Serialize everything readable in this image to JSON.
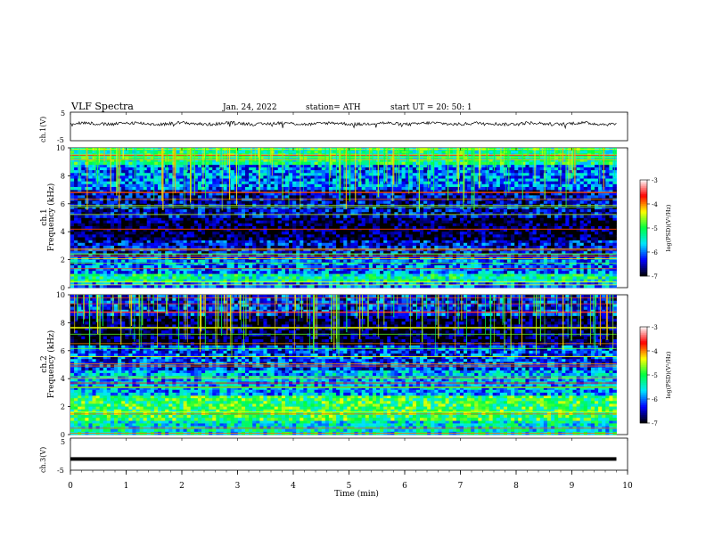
{
  "header": {
    "title": "VLF  Spectra",
    "date": "Jan. 24, 2022",
    "station": "station= ATH",
    "start": "start  UT  =    20: 50: 1"
  },
  "x_axis": {
    "label": "Time  (min)",
    "range": [
      0,
      10
    ],
    "ticks": [
      "0",
      "1",
      "2",
      "3",
      "4",
      "5",
      "6",
      "7",
      "8",
      "9",
      "10"
    ]
  },
  "colorbar": {
    "label": "log(PSD)(V²/Hz)",
    "ticks": [
      "-3",
      "-4",
      "-5",
      "-6",
      "-7"
    ],
    "range": [
      -7,
      -3
    ],
    "colormap": [
      "#000000",
      "#0000ff",
      "#00e5ff",
      "#00ff40",
      "#ffff00",
      "#ff0000",
      "#ffffff"
    ]
  },
  "chart_data": [
    {
      "type": "line",
      "id": "ch1-waveform",
      "ylabel": "ch.1(V)",
      "ylim": [
        -5,
        5
      ],
      "yticks": [
        "5",
        "-5"
      ],
      "xlim": [
        0,
        9.8
      ],
      "description_series": "waveform oscillating near +1 V",
      "series": [
        {
          "x": [
            0,
            9.8
          ],
          "y": [
            1,
            1
          ]
        }
      ]
    },
    {
      "type": "heatmap",
      "id": "ch1-spectrogram",
      "ylabel": "ch.1\nFrequency  (kHz)",
      "ylim": [
        0,
        10
      ],
      "yticks": [
        "0",
        "2",
        "4",
        "6",
        "8",
        "10"
      ],
      "xlim": [
        0,
        9.8
      ],
      "bands_khz": [
        {
          "f": [
            0,
            0.4
          ],
          "level": -6.0
        },
        {
          "f": [
            0.4,
            1.0
          ],
          "level": -5.3
        },
        {
          "f": [
            1.0,
            2.2
          ],
          "level": -6.0
        },
        {
          "f": [
            2.2,
            3.4
          ],
          "level": -6.4
        },
        {
          "f": [
            3.4,
            5.0
          ],
          "level": -6.9
        },
        {
          "f": [
            5.0,
            7.0
          ],
          "level": -6.5
        },
        {
          "f": [
            7.0,
            8.8
          ],
          "level": -6.0
        },
        {
          "f": [
            8.8,
            10.0
          ],
          "level": -5.2
        }
      ]
    },
    {
      "type": "heatmap",
      "id": "ch2-spectrogram",
      "ylabel": "ch.2\nFrequency  (kHz)",
      "ylim": [
        0,
        10
      ],
      "yticks": [
        "0",
        "2",
        "4",
        "6",
        "8",
        "10"
      ],
      "xlim": [
        0,
        9.8
      ],
      "bands_khz": [
        {
          "f": [
            0,
            1.0
          ],
          "level": -5.5
        },
        {
          "f": [
            1.0,
            2.8
          ],
          "level": -5.0
        },
        {
          "f": [
            2.8,
            4.6
          ],
          "level": -5.8
        },
        {
          "f": [
            4.6,
            6.4
          ],
          "level": -6.2
        },
        {
          "f": [
            6.4,
            8.5
          ],
          "level": -6.9
        },
        {
          "f": [
            8.5,
            10.0
          ],
          "level": -6.3
        }
      ]
    },
    {
      "type": "line",
      "id": "ch3-waveform",
      "ylabel": "ch.3(V)",
      "ylim": [
        -5,
        5
      ],
      "yticks": [
        "5",
        "-5"
      ],
      "xlim": [
        0,
        9.8
      ],
      "series": [
        {
          "x": [
            0,
            9.8
          ],
          "y": [
            -1.5,
            -1.5
          ]
        }
      ]
    }
  ]
}
